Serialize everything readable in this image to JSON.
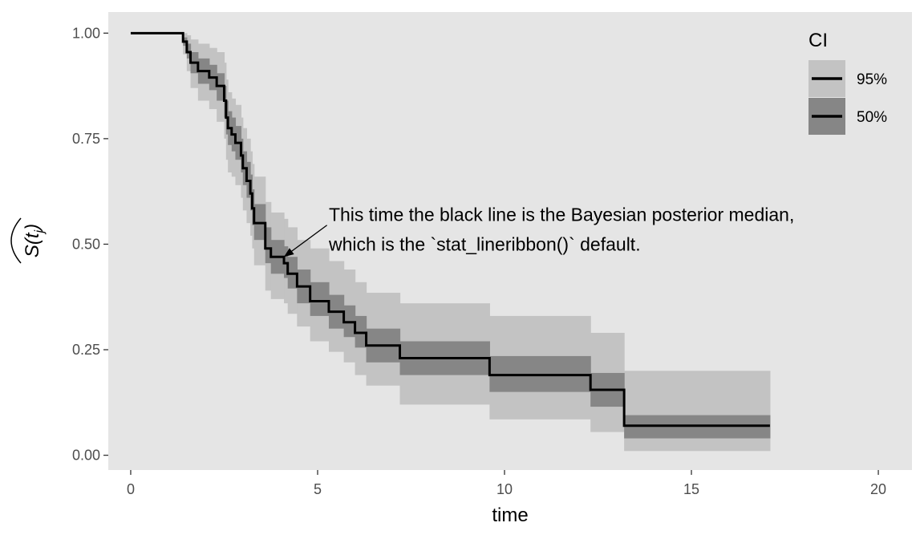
{
  "chart_data": {
    "type": "line",
    "xlabel": "time",
    "ylabel": "S(t_j)",
    "ylabel_parts": {
      "base": "S(t",
      "sub": "j",
      "close": ")"
    },
    "xlim": [
      -0.6,
      20.9
    ],
    "ylim": [
      -0.035,
      1.05
    ],
    "x_ticks": [
      0,
      5,
      10,
      15,
      20
    ],
    "x_tick_labels": [
      "0",
      "5",
      "10",
      "15",
      "20"
    ],
    "y_ticks": [
      0,
      0.25,
      0.5,
      0.75,
      1.0
    ],
    "y_tick_labels": [
      "0.00",
      "0.25",
      "0.50",
      "0.75",
      "1.00"
    ],
    "grid": false,
    "legend": {
      "title": "CI",
      "position": "right-top",
      "entries": [
        {
          "label": "95%",
          "fill": "#c3c3c3"
        },
        {
          "label": "50%",
          "fill": "#868686"
        }
      ]
    },
    "annotation": {
      "lines": [
        "This time the black line is the Bayesian posterior median,",
        "which is the `stat_lineribbon()` default."
      ],
      "text_x": 5.3,
      "text_y": 0.57,
      "arrow_from": [
        5.25,
        0.545
      ],
      "arrow_to": [
        4.1,
        0.47
      ]
    },
    "series": [
      {
        "label": "posterior median",
        "color": "#000000",
        "steps": [
          {
            "x0": 0.0,
            "x1": 1.4,
            "median": 1.0,
            "lo50": 1.0,
            "hi50": 1.0,
            "lo95": 1.0,
            "hi95": 1.0
          },
          {
            "x0": 1.4,
            "x1": 1.5,
            "median": 0.98,
            "lo50": 0.97,
            "hi50": 0.99,
            "lo95": 0.95,
            "hi95": 1.0
          },
          {
            "x0": 1.5,
            "x1": 1.6,
            "median": 0.955,
            "lo50": 0.94,
            "hi50": 0.975,
            "lo95": 0.91,
            "hi95": 0.995
          },
          {
            "x0": 1.6,
            "x1": 1.8,
            "median": 0.93,
            "lo50": 0.905,
            "hi50": 0.955,
            "lo95": 0.87,
            "hi95": 0.985
          },
          {
            "x0": 1.8,
            "x1": 2.1,
            "median": 0.91,
            "lo50": 0.88,
            "hi50": 0.94,
            "lo95": 0.84,
            "hi95": 0.975
          },
          {
            "x0": 2.1,
            "x1": 2.3,
            "median": 0.895,
            "lo50": 0.865,
            "hi50": 0.925,
            "lo95": 0.82,
            "hi95": 0.965
          },
          {
            "x0": 2.3,
            "x1": 2.5,
            "median": 0.875,
            "lo50": 0.84,
            "hi50": 0.905,
            "lo95": 0.79,
            "hi95": 0.955
          },
          {
            "x0": 2.5,
            "x1": 2.55,
            "median": 0.84,
            "lo50": 0.8,
            "hi50": 0.875,
            "lo95": 0.75,
            "hi95": 0.93
          },
          {
            "x0": 2.55,
            "x1": 2.6,
            "median": 0.8,
            "lo50": 0.76,
            "hi50": 0.84,
            "lo95": 0.7,
            "hi95": 0.89
          },
          {
            "x0": 2.6,
            "x1": 2.7,
            "median": 0.775,
            "lo50": 0.735,
            "hi50": 0.815,
            "lo95": 0.67,
            "hi95": 0.86
          },
          {
            "x0": 2.7,
            "x1": 2.8,
            "median": 0.76,
            "lo50": 0.72,
            "hi50": 0.8,
            "lo95": 0.66,
            "hi95": 0.845
          },
          {
            "x0": 2.8,
            "x1": 2.95,
            "median": 0.74,
            "lo50": 0.7,
            "hi50": 0.78,
            "lo95": 0.64,
            "hi95": 0.83
          },
          {
            "x0": 2.95,
            "x1": 3.0,
            "median": 0.71,
            "lo50": 0.67,
            "hi50": 0.75,
            "lo95": 0.61,
            "hi95": 0.8
          },
          {
            "x0": 3.0,
            "x1": 3.1,
            "median": 0.68,
            "lo50": 0.64,
            "hi50": 0.72,
            "lo95": 0.58,
            "hi95": 0.775
          },
          {
            "x0": 3.1,
            "x1": 3.2,
            "median": 0.65,
            "lo50": 0.61,
            "hi50": 0.695,
            "lo95": 0.55,
            "hi95": 0.75
          },
          {
            "x0": 3.2,
            "x1": 3.25,
            "median": 0.62,
            "lo50": 0.58,
            "hi50": 0.665,
            "lo95": 0.52,
            "hi95": 0.72
          },
          {
            "x0": 3.25,
            "x1": 3.3,
            "median": 0.585,
            "lo50": 0.545,
            "hi50": 0.63,
            "lo95": 0.49,
            "hi95": 0.69
          },
          {
            "x0": 3.3,
            "x1": 3.6,
            "median": 0.55,
            "lo50": 0.51,
            "hi50": 0.595,
            "lo95": 0.45,
            "hi95": 0.66
          },
          {
            "x0": 3.6,
            "x1": 3.75,
            "median": 0.49,
            "lo50": 0.455,
            "hi50": 0.54,
            "lo95": 0.39,
            "hi95": 0.6
          },
          {
            "x0": 3.75,
            "x1": 4.1,
            "median": 0.47,
            "lo50": 0.43,
            "hi50": 0.51,
            "lo95": 0.37,
            "hi95": 0.575
          },
          {
            "x0": 4.1,
            "x1": 4.2,
            "median": 0.455,
            "lo50": 0.42,
            "hi50": 0.495,
            "lo95": 0.36,
            "hi95": 0.56
          },
          {
            "x0": 4.2,
            "x1": 4.45,
            "median": 0.43,
            "lo50": 0.395,
            "hi50": 0.47,
            "lo95": 0.335,
            "hi95": 0.54
          },
          {
            "x0": 4.45,
            "x1": 4.8,
            "median": 0.4,
            "lo50": 0.36,
            "hi50": 0.44,
            "lo95": 0.305,
            "hi95": 0.51
          },
          {
            "x0": 4.8,
            "x1": 5.3,
            "median": 0.365,
            "lo50": 0.33,
            "hi50": 0.41,
            "lo95": 0.27,
            "hi95": 0.49
          },
          {
            "x0": 5.3,
            "x1": 5.7,
            "median": 0.34,
            "lo50": 0.3,
            "hi50": 0.38,
            "lo95": 0.245,
            "hi95": 0.46
          },
          {
            "x0": 5.7,
            "x1": 6.0,
            "median": 0.315,
            "lo50": 0.28,
            "hi50": 0.355,
            "lo95": 0.22,
            "hi95": 0.44
          },
          {
            "x0": 6.0,
            "x1": 6.3,
            "median": 0.29,
            "lo50": 0.255,
            "hi50": 0.33,
            "lo95": 0.19,
            "hi95": 0.41
          },
          {
            "x0": 6.3,
            "x1": 7.2,
            "median": 0.26,
            "lo50": 0.22,
            "hi50": 0.3,
            "lo95": 0.165,
            "hi95": 0.385
          },
          {
            "x0": 7.2,
            "x1": 9.6,
            "median": 0.23,
            "lo50": 0.19,
            "hi50": 0.27,
            "lo95": 0.12,
            "hi95": 0.36
          },
          {
            "x0": 9.6,
            "x1": 12.3,
            "median": 0.19,
            "lo50": 0.15,
            "hi50": 0.235,
            "lo95": 0.085,
            "hi95": 0.33
          },
          {
            "x0": 12.3,
            "x1": 13.2,
            "median": 0.155,
            "lo50": 0.115,
            "hi50": 0.195,
            "lo95": 0.055,
            "hi95": 0.29
          },
          {
            "x0": 13.2,
            "x1": 17.1,
            "median": 0.07,
            "lo50": 0.04,
            "hi50": 0.095,
            "lo95": 0.01,
            "hi95": 0.2
          }
        ],
        "final_y": 0.07
      }
    ]
  }
}
